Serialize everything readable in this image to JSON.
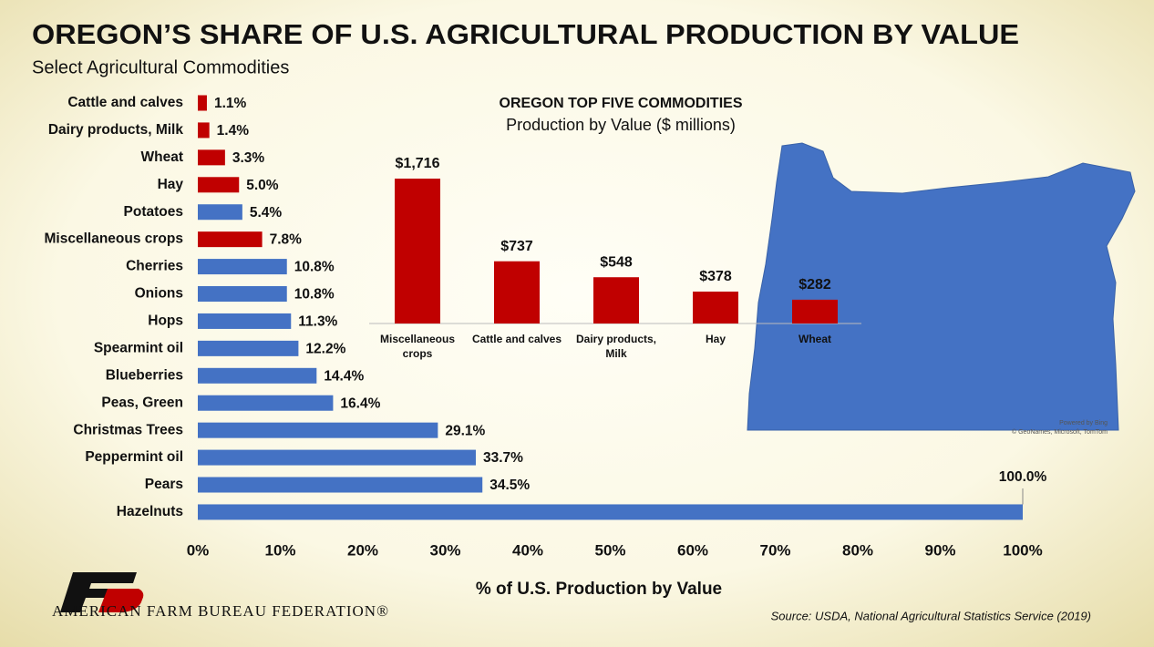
{
  "title": "OREGON’S SHARE OF U.S. AGRICULTURAL PRODUCTION BY VALUE",
  "subtitle": "Select Agricultural Commodities",
  "source": "Source: USDA, National Agricultural Statistics Service (2019)",
  "logo_text": "AMERICAN FARM BUREAU FEDERATION®",
  "map_credit": [
    "Powered by Bing",
    "© GeoNames, Microsoft, TomTom"
  ],
  "chart_data": [
    {
      "type": "hbar",
      "categories": [
        "Cattle and calves",
        "Dairy products, Milk",
        "Wheat",
        "Hay",
        "Potatoes",
        "Miscellaneous crops",
        "Cherries",
        "Onions",
        "Hops",
        "Spearmint oil",
        "Blueberries",
        "Peas, Green",
        "Christmas Trees",
        "Peppermint oil",
        "Pears",
        "Hazelnuts"
      ],
      "values": [
        1.1,
        1.4,
        3.3,
        5.0,
        5.4,
        7.8,
        10.8,
        10.8,
        11.3,
        12.2,
        14.4,
        16.4,
        29.1,
        33.7,
        34.5,
        100.0
      ],
      "value_labels": [
        "1.1%",
        "1.4%",
        "3.3%",
        "5.0%",
        "5.4%",
        "7.8%",
        "10.8%",
        "10.8%",
        "11.3%",
        "12.2%",
        "14.4%",
        "16.4%",
        "29.1%",
        "33.7%",
        "34.5%",
        "100.0%"
      ],
      "colors": [
        "#c00000",
        "#c00000",
        "#c00000",
        "#c00000",
        "#4472c4",
        "#c00000",
        "#4472c4",
        "#4472c4",
        "#4472c4",
        "#4472c4",
        "#4472c4",
        "#4472c4",
        "#4472c4",
        "#4472c4",
        "#4472c4",
        "#4472c4"
      ],
      "xlim": [
        0,
        100
      ],
      "xticks": [
        {
          "value": 0,
          "label": "0%"
        },
        {
          "value": 10,
          "label": "10%"
        },
        {
          "value": 20,
          "label": "20%"
        },
        {
          "value": 30,
          "label": "30%"
        },
        {
          "value": 40,
          "label": "40%"
        },
        {
          "value": 50,
          "label": "50%"
        },
        {
          "value": 60,
          "label": "60%"
        },
        {
          "value": 70,
          "label": "70%"
        },
        {
          "value": 80,
          "label": "80%"
        },
        {
          "value": 90,
          "label": "90%"
        },
        {
          "value": 100,
          "label": "100%"
        }
      ],
      "x_label": "% of U.S. Production by Value"
    },
    {
      "type": "bar",
      "title": "OREGON TOP FIVE COMMODITIES",
      "subtitle": "Production by Value ($ millions)",
      "categories": [
        "Miscellaneous crops",
        "Cattle and calves",
        "Dairy products, Milk",
        "Hay",
        "Wheat"
      ],
      "values": [
        1716,
        737,
        548,
        378,
        282
      ],
      "value_labels": [
        "$1,716",
        "$737",
        "$548",
        "$378",
        "$282"
      ],
      "color": "#c00000"
    }
  ]
}
